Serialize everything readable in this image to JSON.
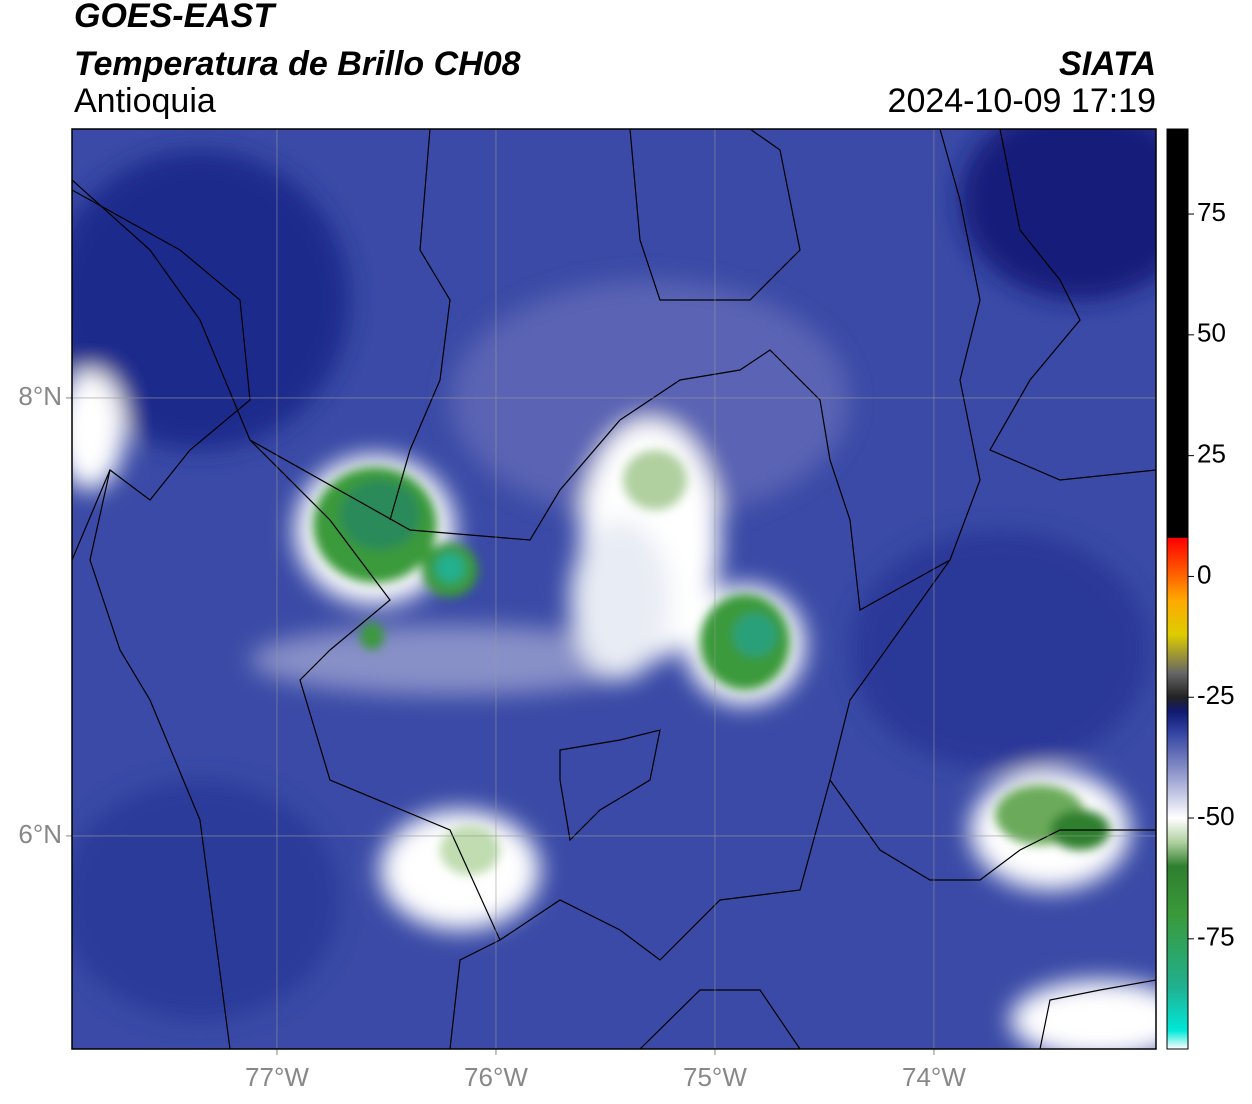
{
  "header": {
    "line1": "GOES-EAST",
    "line2": "Temperatura de Brillo CH08",
    "region": "Antioquia",
    "source": "SIATA",
    "datetime": "2024-10-09 17:19"
  },
  "map": {
    "xlim": [
      -77.936,
      -72.986
    ],
    "ylim": [
      5.027,
      9.228
    ],
    "xticks": [
      {
        "value": -77,
        "label": "77°W"
      },
      {
        "value": -76,
        "label": "76°W"
      },
      {
        "value": -75,
        "label": "75°W"
      },
      {
        "value": -74,
        "label": "74°W"
      }
    ],
    "yticks": [
      {
        "value": 8,
        "label": "8°N"
      },
      {
        "value": 6,
        "label": "6°N"
      }
    ],
    "grid": true
  },
  "colorbar": {
    "lim": [
      -97.8,
      92.6
    ],
    "ticks": [
      75,
      50,
      25,
      0,
      -25,
      -50,
      -75
    ],
    "stops": [
      [
        -97.8,
        "#ffffff"
      ],
      [
        -94,
        "#00e8d8"
      ],
      [
        -85,
        "#20b090"
      ],
      [
        -70,
        "#3a9a3a"
      ],
      [
        -60,
        "#2f7f2f"
      ],
      [
        -55,
        "#b0d0a0"
      ],
      [
        -50,
        "#ffffff"
      ],
      [
        -40,
        "#8890c8"
      ],
      [
        -32,
        "#3040a0"
      ],
      [
        -28,
        "#101a70"
      ],
      [
        -25,
        "#222222"
      ],
      [
        -20,
        "#666666"
      ],
      [
        -12,
        "#ddcc00"
      ],
      [
        -5,
        "#ffaa00"
      ],
      [
        0,
        "#ff6600"
      ],
      [
        8,
        "#ff0000"
      ],
      [
        8.01,
        "#000000"
      ],
      [
        92.6,
        "#000000"
      ]
    ]
  }
}
